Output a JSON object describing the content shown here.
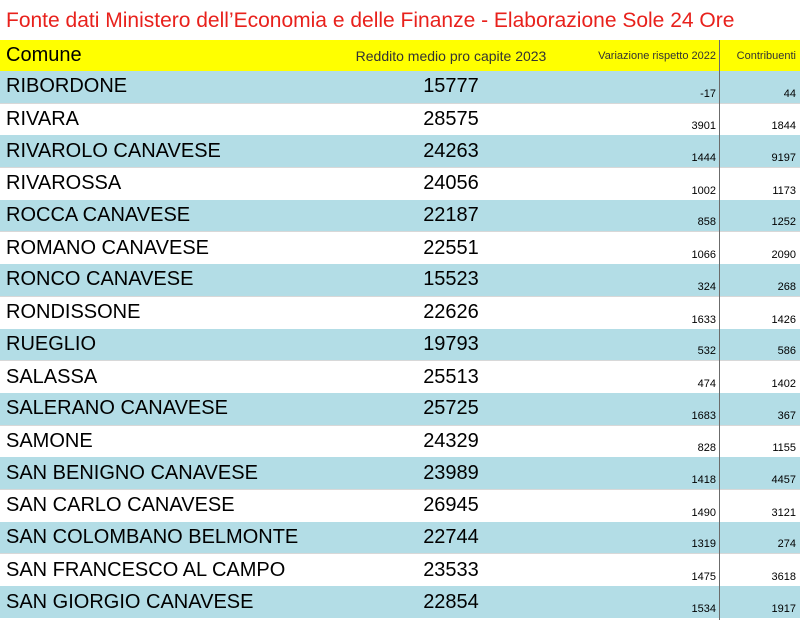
{
  "title": "Fonte dati Ministero dell’Economia e delle Finanze - Elaborazione Sole 24 Ore",
  "headers": {
    "comune": "Comune",
    "reddito": "Reddito medio pro capite 2023",
    "variazione": "Variazione rispetto 2022",
    "contribuenti": "Contribuenti"
  },
  "rows": [
    {
      "comune": "RIBORDONE",
      "reddito": "15777",
      "variazione": "-17",
      "contribuenti": "44"
    },
    {
      "comune": "RIVARA",
      "reddito": "28575",
      "variazione": "3901",
      "contribuenti": "1844"
    },
    {
      "comune": "RIVAROLO CANAVESE",
      "reddito": "24263",
      "variazione": "1444",
      "contribuenti": "9197"
    },
    {
      "comune": "RIVAROSSA",
      "reddito": "24056",
      "variazione": "1002",
      "contribuenti": "1173"
    },
    {
      "comune": "ROCCA CANAVESE",
      "reddito": "22187",
      "variazione": "858",
      "contribuenti": "1252"
    },
    {
      "comune": "ROMANO CANAVESE",
      "reddito": "22551",
      "variazione": "1066",
      "contribuenti": "2090"
    },
    {
      "comune": "RONCO CANAVESE",
      "reddito": "15523",
      "variazione": "324",
      "contribuenti": "268"
    },
    {
      "comune": "RONDISSONE",
      "reddito": "22626",
      "variazione": "1633",
      "contribuenti": "1426"
    },
    {
      "comune": "RUEGLIO",
      "reddito": "19793",
      "variazione": "532",
      "contribuenti": "586"
    },
    {
      "comune": "SALASSA",
      "reddito": "25513",
      "variazione": "474",
      "contribuenti": "1402"
    },
    {
      "comune": "SALERANO CANAVESE",
      "reddito": "25725",
      "variazione": "1683",
      "contribuenti": "367"
    },
    {
      "comune": "SAMONE",
      "reddito": "24329",
      "variazione": "828",
      "contribuenti": "1155"
    },
    {
      "comune": "SAN BENIGNO CANAVESE",
      "reddito": "23989",
      "variazione": "1418",
      "contribuenti": "4457"
    },
    {
      "comune": "SAN CARLO CANAVESE",
      "reddito": "26945",
      "variazione": "1490",
      "contribuenti": "3121"
    },
    {
      "comune": "SAN COLOMBANO BELMONTE",
      "reddito": "22744",
      "variazione": "1319",
      "contribuenti": "274"
    },
    {
      "comune": "SAN FRANCESCO AL CAMPO",
      "reddito": "23533",
      "variazione": "1475",
      "contribuenti": "3618"
    },
    {
      "comune": "SAN GIORGIO CANAVESE",
      "reddito": "22854",
      "variazione": "1534",
      "contribuenti": "1917"
    }
  ],
  "colors": {
    "title_text": "#e8211c",
    "header_background": "#ffff00",
    "row_band": "#b3dde6"
  }
}
